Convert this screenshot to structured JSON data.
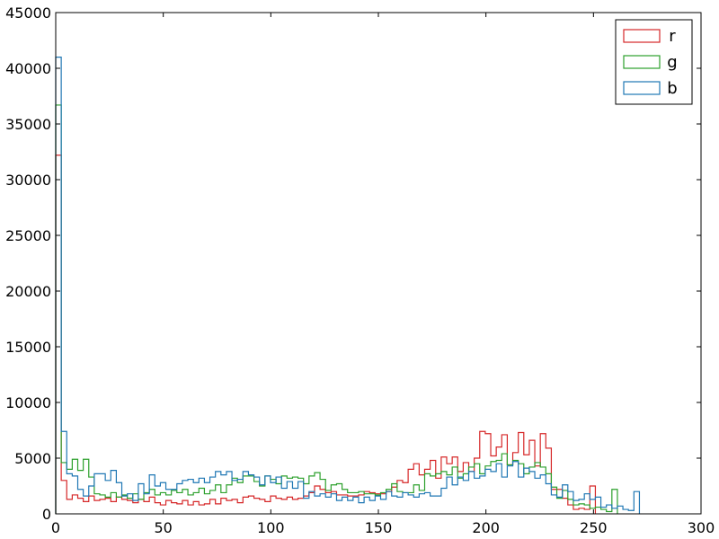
{
  "chart_data": {
    "type": "histogram",
    "grid": false,
    "legend_position": "top-right",
    "xlim": [
      0,
      300
    ],
    "ylim": [
      0,
      45000
    ],
    "x_ticks": [
      "0",
      "50",
      "100",
      "150",
      "200",
      "250",
      "300"
    ],
    "y_ticks": [
      "0",
      "5000",
      "10000",
      "15000",
      "20000",
      "25000",
      "30000",
      "35000",
      "40000",
      "45000"
    ],
    "bin_width": 2.56,
    "series": [
      {
        "name": "r",
        "color": "#d62728",
        "values": [
          32200,
          3000,
          1300,
          1700,
          1400,
          1100,
          1600,
          1200,
          1300,
          1400,
          1100,
          1500,
          1300,
          1200,
          1000,
          1300,
          1100,
          1500,
          1000,
          800,
          1200,
          1000,
          900,
          1200,
          800,
          1100,
          800,
          900,
          1300,
          900,
          1400,
          1200,
          1300,
          1000,
          1500,
          1600,
          1400,
          1300,
          1100,
          1600,
          1400,
          1300,
          1500,
          1300,
          1400,
          1600,
          1900,
          2500,
          2200,
          1900,
          2000,
          1700,
          1700,
          1600,
          1600,
          1700,
          2000,
          1900,
          1800,
          1800,
          2000,
          2400,
          3000,
          2800,
          4000,
          4500,
          3500,
          4000,
          4800,
          3200,
          5100,
          4500,
          5100,
          3800,
          4600,
          3800,
          5000,
          7400,
          7200,
          5200,
          6000,
          7100,
          4400,
          5500,
          7300,
          5300,
          6600,
          4300,
          7200,
          5900,
          2200,
          2200,
          1400,
          800,
          400,
          500,
          400,
          2500
        ]
      },
      {
        "name": "g",
        "color": "#2ca02c",
        "values": [
          36700,
          4600,
          4000,
          4900,
          3900,
          4900,
          3300,
          1800,
          1700,
          1500,
          1900,
          1500,
          1700,
          1400,
          1800,
          1300,
          1900,
          2200,
          1700,
          1900,
          1700,
          2100,
          1900,
          2200,
          1700,
          1900,
          2300,
          1800,
          2100,
          2600,
          1900,
          2600,
          3200,
          2800,
          3400,
          3400,
          2900,
          2500,
          3400,
          3100,
          2700,
          3400,
          3200,
          3300,
          3200,
          2700,
          3400,
          3700,
          3100,
          2100,
          2600,
          2700,
          2200,
          1900,
          1900,
          2000,
          1800,
          1800,
          1700,
          1900,
          2200,
          2700,
          2000,
          1900,
          1900,
          2600,
          2100,
          3600,
          3400,
          3600,
          3800,
          3500,
          4200,
          3200,
          3600,
          4200,
          4500,
          3600,
          4300,
          4700,
          4800,
          5400,
          4400,
          4800,
          4500,
          3600,
          4200,
          4600,
          4200,
          3600,
          2400,
          1400,
          2100,
          1300,
          800,
          900,
          800,
          500,
          600,
          400,
          200,
          2200
        ]
      },
      {
        "name": "b",
        "color": "#1f77b4",
        "values": [
          41000,
          7400,
          3600,
          3400,
          2200,
          1600,
          2500,
          3600,
          3600,
          3000,
          3900,
          2800,
          1600,
          1800,
          1200,
          2700,
          1800,
          3500,
          2500,
          2800,
          2200,
          2200,
          2700,
          3000,
          3100,
          2800,
          3200,
          2800,
          3300,
          3800,
          3500,
          3800,
          3000,
          3100,
          3800,
          3500,
          3300,
          2600,
          3400,
          2800,
          3300,
          2300,
          2900,
          2300,
          2900,
          1400,
          2000,
          1600,
          1800,
          1500,
          1800,
          1200,
          1500,
          1200,
          1500,
          1000,
          1500,
          1200,
          1600,
          1300,
          2000,
          1600,
          1500,
          1900,
          1700,
          1500,
          1800,
          1900,
          1600,
          1600,
          2300,
          3300,
          2600,
          3300,
          3000,
          3800,
          3200,
          3400,
          4000,
          3800,
          4500,
          3300,
          4300,
          4700,
          3300,
          4100,
          3800,
          3200,
          3500,
          2700,
          1700,
          1500,
          2600,
          2000,
          1200,
          1300,
          1800,
          1300,
          1500,
          600,
          800,
          500,
          700,
          400,
          300,
          2000
        ]
      }
    ]
  }
}
